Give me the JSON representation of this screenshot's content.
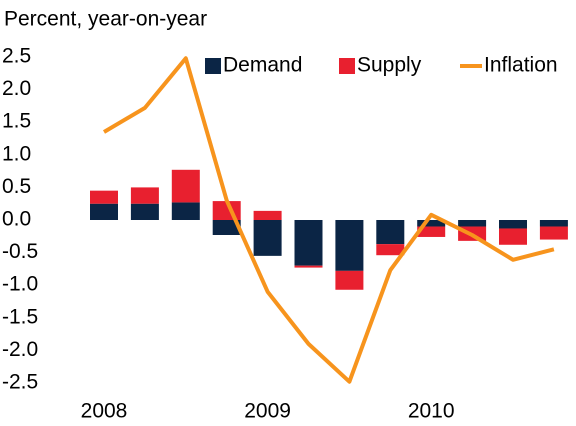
{
  "chart_data": {
    "type": "bar_line",
    "title": "Percent, year-on-year",
    "categories": [
      "2008",
      null,
      null,
      null,
      "2009",
      null,
      null,
      null,
      "2010",
      null,
      null,
      null
    ],
    "series": [
      {
        "name": "Demand",
        "type": "bar",
        "color": "#0b2545",
        "values": [
          0.25,
          0.25,
          0.27,
          -0.23,
          -0.55,
          -0.7,
          -0.78,
          -0.37,
          -0.1,
          -0.1,
          -0.13,
          -0.1
        ]
      },
      {
        "name": "Supply",
        "type": "bar",
        "color": "#e8202f",
        "values": [
          0.2,
          0.25,
          0.5,
          0.29,
          0.14,
          -0.03,
          -0.29,
          -0.17,
          -0.16,
          -0.22,
          -0.25,
          -0.2
        ]
      },
      {
        "name": "Inflation",
        "type": "line",
        "color": "#f7941d",
        "values": [
          1.35,
          1.72,
          2.48,
          0.3,
          -1.1,
          -1.9,
          -2.48,
          -0.77,
          0.08,
          -0.23,
          -0.61,
          -0.45
        ]
      }
    ],
    "ylim": [
      -2.5,
      2.5
    ],
    "yticks": [
      2.5,
      {
        "value": 2,
        "label": "2.0"
      },
      1.5,
      {
        "value": 1,
        "label": "1.0"
      },
      0.5,
      {
        "value": 0,
        "label": "0.0"
      },
      -0.5,
      {
        "value": -1,
        "label": "-1.0"
      },
      -1.5,
      {
        "value": -2,
        "label": "-2.0"
      },
      -2.5
    ],
    "grid": false
  }
}
